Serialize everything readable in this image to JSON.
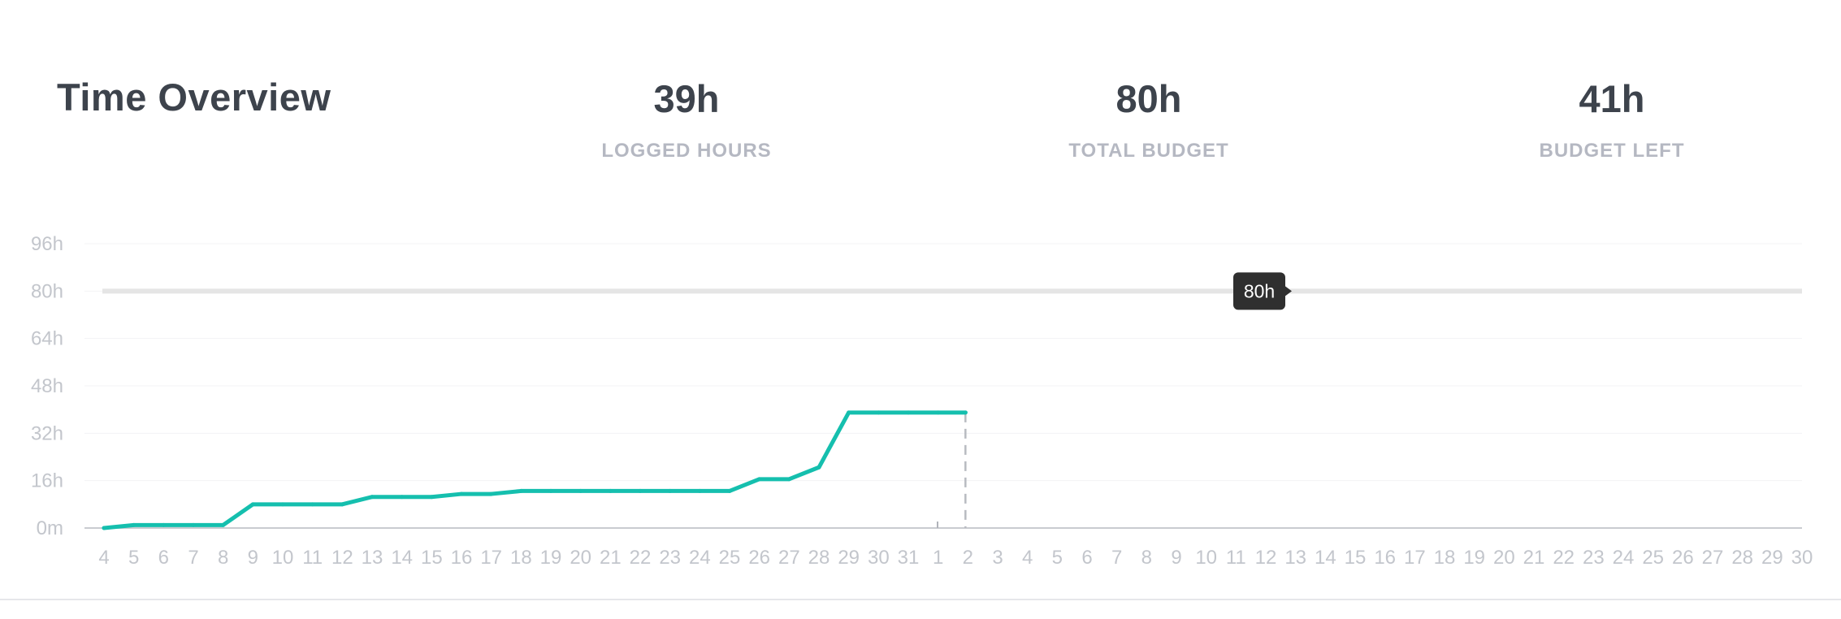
{
  "header": {
    "title": "Time Overview",
    "stats": [
      {
        "value": "39h",
        "label": "LOGGED HOURS"
      },
      {
        "value": "80h",
        "label": "TOTAL BUDGET"
      },
      {
        "value": "41h",
        "label": "BUDGET LEFT"
      }
    ]
  },
  "chart_data": {
    "type": "line",
    "title": "",
    "xlabel": "",
    "ylabel": "",
    "ylim": [
      0,
      96
    ],
    "y_ticks": [
      "0m",
      "16h",
      "32h",
      "48h",
      "64h",
      "80h",
      "96h"
    ],
    "y_tick_values": [
      0,
      16,
      32,
      48,
      64,
      80,
      96
    ],
    "x_ticks": [
      "4",
      "5",
      "6",
      "7",
      "8",
      "9",
      "10",
      "11",
      "12",
      "13",
      "14",
      "15",
      "16",
      "17",
      "18",
      "19",
      "20",
      "21",
      "22",
      "23",
      "24",
      "25",
      "26",
      "27",
      "28",
      "29",
      "30",
      "31",
      "1",
      "2",
      "3",
      "4",
      "5",
      "6",
      "7",
      "8",
      "9",
      "10",
      "11",
      "12",
      "13",
      "14",
      "15",
      "16",
      "17",
      "18",
      "19",
      "20",
      "21",
      "22",
      "23",
      "24",
      "25",
      "26",
      "27",
      "28",
      "29",
      "30"
    ],
    "grid": true,
    "series": [
      {
        "values": [
          0,
          1,
          1,
          1,
          1,
          8,
          8,
          8,
          8,
          10.5,
          10.5,
          10.5,
          11.5,
          11.5,
          12.5,
          12.5,
          12.5,
          12.5,
          12.5,
          12.5,
          12.5,
          12.5,
          16.5,
          16.5,
          20.5,
          39,
          39,
          39,
          39,
          39
        ],
        "color": "#15bfae"
      }
    ],
    "budget": {
      "value": 80,
      "label": "80h",
      "color": "#e5e5e5"
    },
    "today_marker_index": 29
  }
}
